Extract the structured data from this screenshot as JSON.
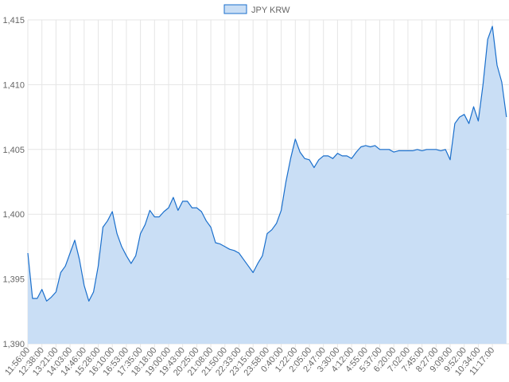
{
  "chart_data": {
    "type": "area",
    "series": [
      {
        "name": "JPY KRW",
        "color": "#1a6fcc",
        "fill": "#c9def5",
        "values": [
          1397,
          1393.5,
          1393.5,
          1394.2,
          1393.3,
          1393.6,
          1394,
          1395.5,
          1396,
          1397,
          1398,
          1396.5,
          1394.5,
          1393.3,
          1394,
          1396,
          1399,
          1399.5,
          1400.2,
          1398.5,
          1397.5,
          1396.8,
          1396.2,
          1396.8,
          1398.5,
          1399.2,
          1400.3,
          1399.8,
          1399.8,
          1400.2,
          1400.5,
          1401.3,
          1400.3,
          1401,
          1401,
          1400.5,
          1400.5,
          1400.2,
          1399.5,
          1399,
          1397.8,
          1397.7,
          1397.5,
          1397.3,
          1397.2,
          1397,
          1396.5,
          1396,
          1395.5,
          1396.2,
          1396.8,
          1398.5,
          1398.8,
          1399.3,
          1400.3,
          1402.5,
          1404.3,
          1405.8,
          1404.8,
          1404.3,
          1404.2,
          1403.6,
          1404.2,
          1404.5,
          1404.5,
          1404.3,
          1404.7,
          1404.5,
          1404.5,
          1404.3,
          1404.8,
          1405.2,
          1405.3,
          1405.2,
          1405.3,
          1405,
          1405,
          1405,
          1404.8,
          1404.9,
          1404.9,
          1404.9,
          1404.9,
          1405,
          1404.9,
          1405,
          1405,
          1405,
          1404.9,
          1405,
          1404.2,
          1407,
          1407.5,
          1407.7,
          1407,
          1408.3,
          1407.2,
          1410,
          1413.5,
          1414.5,
          1411.5,
          1410.2,
          1407.5
        ]
      }
    ],
    "categories": [
      "11:56:00",
      null,
      null,
      "12:38:00",
      null,
      null,
      "13:21:00",
      null,
      null,
      "14:03:00",
      null,
      null,
      "14:46:00",
      null,
      null,
      "15:28:00",
      null,
      null,
      "16:10:00",
      null,
      null,
      "16:53:00",
      null,
      null,
      "17:35:00",
      null,
      null,
      "18:18:00",
      null,
      null,
      "19:00:00",
      null,
      null,
      "19:43:00",
      null,
      null,
      "20:25:00",
      null,
      null,
      "21:08:00",
      null,
      null,
      "21:50:00",
      null,
      null,
      "22:33:00",
      null,
      null,
      "23:15:00",
      null,
      null,
      "23:58:00",
      null,
      null,
      "0:40:00",
      null,
      null,
      "1:22:00",
      null,
      null,
      "2:05:00",
      null,
      null,
      "2:47:00",
      null,
      null,
      "3:30:00",
      null,
      null,
      "4:12:00",
      null,
      null,
      "4:55:00",
      null,
      null,
      "5:37:00",
      null,
      null,
      "6:20:00",
      null,
      null,
      "7:02:00",
      null,
      null,
      "7:45:00",
      null,
      null,
      "8:27:00",
      null,
      null,
      "9:09:00",
      null,
      null,
      "9:52:00",
      null,
      null,
      "10:34:00",
      null,
      null,
      "11:17:00",
      null,
      null,
      null
    ],
    "ylim": [
      1390,
      1415
    ],
    "yticks": [
      {
        "value": 1390,
        "label": "1,390"
      },
      {
        "value": 1395,
        "label": "1,395"
      },
      {
        "value": 1400,
        "label": "1,400"
      },
      {
        "value": 1405,
        "label": "1,405"
      },
      {
        "value": 1410,
        "label": "1,410"
      },
      {
        "value": 1415,
        "label": "1,415"
      }
    ],
    "grid": true,
    "legend": "top"
  }
}
